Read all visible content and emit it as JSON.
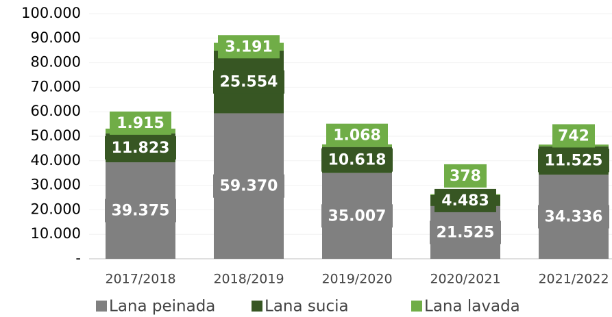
{
  "chart_data": {
    "type": "stacked_bar",
    "categories": [
      "2017/2018",
      "2018/2019",
      "2019/2020",
      "2020/2021",
      "2021/2022"
    ],
    "series": [
      {
        "name": "Lana peinada",
        "color": "#808080",
        "values": [
          39375,
          59370,
          35007,
          21525,
          34336
        ],
        "value_labels": [
          "39.375",
          "59.370",
          "35.007",
          "21.525",
          "34.336"
        ]
      },
      {
        "name": "Lana sucia",
        "color": "#375623",
        "values": [
          11823,
          25554,
          10618,
          4483,
          11525
        ],
        "value_labels": [
          "11.823",
          "25.554",
          "10.618",
          "4.483",
          "11.525"
        ]
      },
      {
        "name": "Lana lavada",
        "color": "#70ad47",
        "values": [
          1915,
          3191,
          1068,
          378,
          742
        ],
        "value_labels": [
          "1.915",
          "3.191",
          "1.068",
          "378",
          "742"
        ]
      }
    ],
    "ylim": [
      0,
      100000
    ],
    "yticks": [
      {
        "value": 0,
        "label": "-"
      },
      {
        "value": 10000,
        "label": "10.000"
      },
      {
        "value": 20000,
        "label": "20.000"
      },
      {
        "value": 30000,
        "label": "30.000"
      },
      {
        "value": 40000,
        "label": "40.000"
      },
      {
        "value": 50000,
        "label": "50.000"
      },
      {
        "value": 60000,
        "label": "60.000"
      },
      {
        "value": 70000,
        "label": "70.000"
      },
      {
        "value": 80000,
        "label": "80.000"
      },
      {
        "value": 90000,
        "label": "90.000"
      },
      {
        "value": 100000,
        "label": "100.000"
      }
    ],
    "legend": "bottom"
  }
}
